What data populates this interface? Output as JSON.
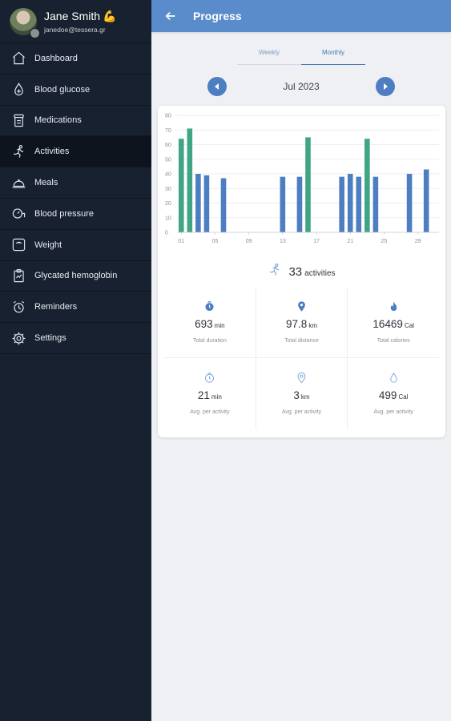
{
  "profile": {
    "name": "Jane Smith",
    "email": "janedoe@tessera.gr"
  },
  "sidebar": {
    "items": [
      {
        "label": "Dashboard",
        "icon": "home-icon"
      },
      {
        "label": "Blood glucose",
        "icon": "drop-icon"
      },
      {
        "label": "Medications",
        "icon": "pill-bottle-icon"
      },
      {
        "label": "Activities",
        "icon": "runner-icon",
        "active": true
      },
      {
        "label": "Meals",
        "icon": "cloche-icon"
      },
      {
        "label": "Blood pressure",
        "icon": "blood-pressure-icon"
      },
      {
        "label": "Weight",
        "icon": "scale-icon"
      },
      {
        "label": "Glycated hemoglobin",
        "icon": "clipboard-icon"
      },
      {
        "label": "Reminders",
        "icon": "alarm-icon"
      },
      {
        "label": "Settings",
        "icon": "gear-icon"
      }
    ]
  },
  "topbar": {
    "title": "Progress"
  },
  "tabs": [
    {
      "label": "Weekly",
      "active": false
    },
    {
      "label": "Monthly",
      "active": true
    }
  ],
  "period": {
    "label": "Jul 2023"
  },
  "colors": {
    "header": "#5a8ccc",
    "sidebar": "#17212f",
    "bar_blue": "#4d7ec1",
    "bar_green": "#3fa585",
    "icon_blue": "#4d7ec1"
  },
  "chart_data": {
    "type": "bar",
    "ylim": [
      0,
      80
    ],
    "y_ticks": [
      0,
      10,
      20,
      30,
      40,
      50,
      60,
      70,
      80
    ],
    "x_range": [
      1,
      31
    ],
    "x_tick_labels": [
      "01",
      "05",
      "09",
      "13",
      "17",
      "21",
      "25",
      "29"
    ],
    "x_tick_days": [
      1,
      5,
      9,
      13,
      17,
      21,
      25,
      29
    ],
    "grid": true,
    "bars": [
      {
        "day": 1,
        "value": 64,
        "color": "green"
      },
      {
        "day": 2,
        "value": 71,
        "color": "green"
      },
      {
        "day": 3,
        "value": 40,
        "color": "blue"
      },
      {
        "day": 4,
        "value": 39,
        "color": "blue"
      },
      {
        "day": 6,
        "value": 37,
        "color": "blue"
      },
      {
        "day": 13,
        "value": 38,
        "color": "blue"
      },
      {
        "day": 15,
        "value": 38,
        "color": "blue"
      },
      {
        "day": 16,
        "value": 65,
        "color": "green"
      },
      {
        "day": 20,
        "value": 38,
        "color": "blue"
      },
      {
        "day": 21,
        "value": 40,
        "color": "blue"
      },
      {
        "day": 22,
        "value": 38,
        "color": "blue"
      },
      {
        "day": 23,
        "value": 64,
        "color": "green"
      },
      {
        "day": 24,
        "value": 38,
        "color": "blue"
      },
      {
        "day": 28,
        "value": 40,
        "color": "blue"
      },
      {
        "day": 30,
        "value": 43,
        "color": "blue"
      }
    ]
  },
  "summary": {
    "value": "33",
    "unit": "activities"
  },
  "stats": [
    {
      "icon": "timer-icon",
      "value": "693",
      "unit": "min",
      "caption": "Total duration"
    },
    {
      "icon": "location-pin-icon",
      "value": "97.8",
      "unit": "km",
      "caption": "Total distance"
    },
    {
      "icon": "flame-icon",
      "value": "16469",
      "unit": "Cal",
      "caption": "Total calories"
    },
    {
      "icon": "timer-outline-icon",
      "value": "21",
      "unit": "min",
      "caption": "Avg. per activity"
    },
    {
      "icon": "location-pin-outline-icon",
      "value": "3",
      "unit": "km",
      "caption": "Avg. per activity"
    },
    {
      "icon": "drop-outline-icon",
      "value": "499",
      "unit": "Cal",
      "caption": "Avg. per activity"
    }
  ]
}
